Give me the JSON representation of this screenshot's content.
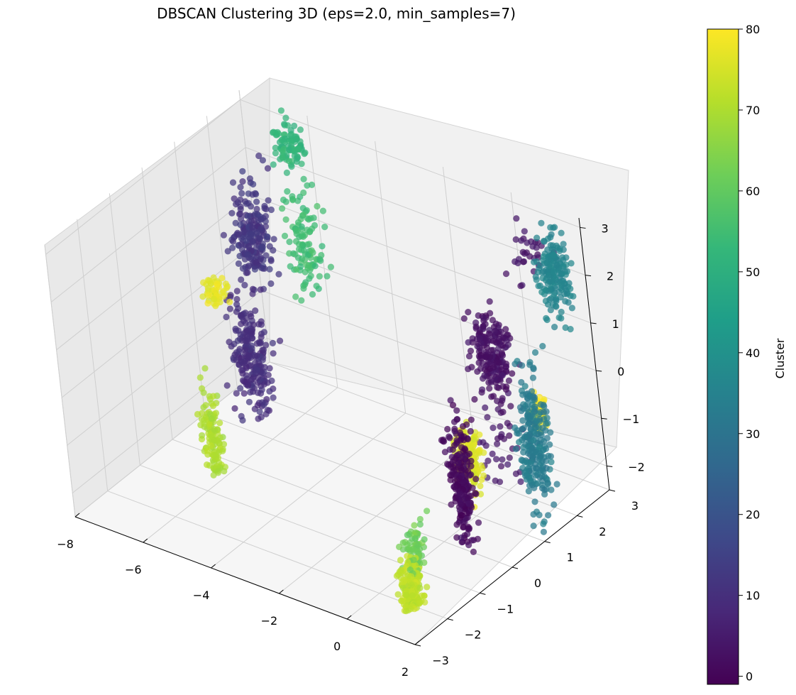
{
  "chart_data": {
    "type": "scatter",
    "projection": "3d",
    "title": "DBSCAN Clustering 3D (eps=2.0, min_samples=7)",
    "xlim": [
      -8,
      2
    ],
    "ylim": [
      -3,
      3
    ],
    "zlim": [
      -2.5,
      3.2
    ],
    "x_ticks": [
      -8,
      -6,
      -4,
      -2,
      0,
      2
    ],
    "y_ticks": [
      -3,
      -2,
      -1,
      0,
      1,
      2,
      3
    ],
    "z_ticks": [
      -2,
      -1,
      0,
      1,
      2,
      3
    ],
    "grid": true,
    "colormap": "viridis",
    "colorbar": {
      "label": "Cluster",
      "range": [
        -1,
        80
      ],
      "ticks": [
        0,
        10,
        20,
        30,
        40,
        50,
        60,
        70,
        80
      ]
    },
    "clusters": [
      {
        "cx": -7.0,
        "cy": 2.0,
        "cz": 1.0,
        "sx": 0.25,
        "sy": 0.3,
        "sz": 0.7,
        "n": 200,
        "value": 12
      },
      {
        "cx": -6.9,
        "cy": 1.5,
        "cz": -1.2,
        "sx": 0.25,
        "sy": 0.3,
        "sz": 0.9,
        "n": 220,
        "value": 10
      },
      {
        "cx": -7.3,
        "cy": 1.0,
        "cz": 0.2,
        "sx": 0.15,
        "sy": 0.2,
        "sz": 0.3,
        "n": 50,
        "value": 77
      },
      {
        "cx": -6.3,
        "cy": -0.4,
        "cz": -1.8,
        "sx": 0.15,
        "sy": 0.15,
        "sz": 0.7,
        "n": 120,
        "value": 70
      },
      {
        "cx": -6.5,
        "cy": 2.9,
        "cz": 2.5,
        "sx": 0.3,
        "sy": 0.2,
        "sz": 0.3,
        "n": 90,
        "value": 52
      },
      {
        "cx": -6.3,
        "cy": 2.8,
        "cz": 0.6,
        "sx": 0.3,
        "sy": 0.2,
        "sz": 0.8,
        "n": 110,
        "value": 55
      },
      {
        "cx": 0.8,
        "cy": 1.2,
        "cz": 1.0,
        "sx": 0.3,
        "sy": 0.3,
        "sz": 0.6,
        "n": 200,
        "value": 3
      },
      {
        "cx": 1.3,
        "cy": -0.5,
        "cz": -0.6,
        "sx": 0.15,
        "sy": 0.2,
        "sz": 0.9,
        "n": 220,
        "value": 1
      },
      {
        "cx": 0.5,
        "cy": 0.5,
        "cz": -0.9,
        "sx": 0.2,
        "sy": 0.2,
        "sz": 0.5,
        "n": 160,
        "value": 76
      },
      {
        "cx": 0.9,
        "cy": -1.9,
        "cz": -2.2,
        "sx": 0.15,
        "sy": 0.2,
        "sz": 0.5,
        "n": 180,
        "value": 72
      },
      {
        "cx": 0.9,
        "cy": -1.7,
        "cz": -1.5,
        "sx": 0.15,
        "sy": 0.2,
        "sz": 0.4,
        "n": 70,
        "value": 62
      },
      {
        "cx": 0.0,
        "cy": 2.0,
        "cz": -1.5,
        "sx": 0.4,
        "sy": 0.4,
        "sz": 0.7,
        "n": 40,
        "value": 4
      },
      {
        "cx": 1.5,
        "cy": 2.6,
        "cz": 2.1,
        "sx": 0.25,
        "sy": 0.25,
        "sz": 0.6,
        "n": 170,
        "value": 36
      },
      {
        "cx": 1.6,
        "cy": 1.4,
        "cz": -0.7,
        "sx": 0.25,
        "sy": 0.25,
        "sz": 1.0,
        "n": 230,
        "value": 33
      },
      {
        "cx": 1.2,
        "cy": 2.0,
        "cz": -0.6,
        "sx": 0.12,
        "sy": 0.12,
        "sz": 0.3,
        "n": 50,
        "value": 80
      },
      {
        "cx": 0.8,
        "cy": 2.6,
        "cz": 2.3,
        "sx": 0.4,
        "sy": 0.3,
        "sz": 0.4,
        "n": 30,
        "value": 4
      }
    ]
  }
}
